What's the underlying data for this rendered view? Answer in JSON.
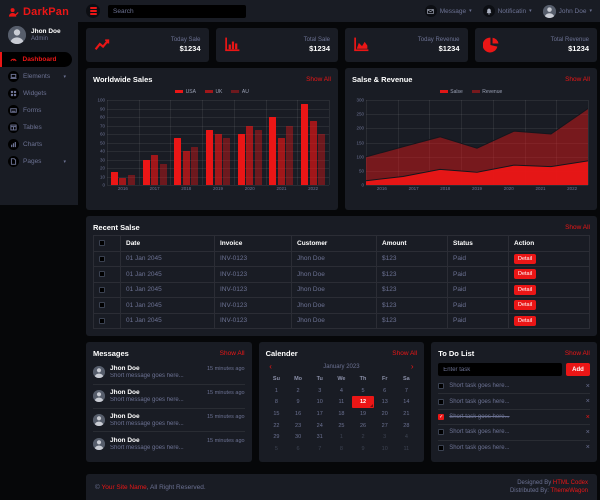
{
  "app": {
    "brand": "DarkPan"
  },
  "colors": {
    "primary": "#EB1616",
    "panel": "#191C24",
    "body": "#060709",
    "muted": "#6C7293"
  },
  "show_all": "Show All",
  "sidebar": {
    "user": {
      "name": "Jhon Doe",
      "role": "Admin"
    },
    "items": [
      {
        "label": "Dashboard",
        "icon": "dashboard-icon",
        "active": true,
        "chevron": false
      },
      {
        "label": "Elements",
        "icon": "laptop-icon",
        "active": false,
        "chevron": true
      },
      {
        "label": "Widgets",
        "icon": "grid-icon",
        "active": false,
        "chevron": false
      },
      {
        "label": "Forms",
        "icon": "keyboard-icon",
        "active": false,
        "chevron": false
      },
      {
        "label": "Tables",
        "icon": "table-icon",
        "active": false,
        "chevron": false
      },
      {
        "label": "Charts",
        "icon": "chart-icon",
        "active": false,
        "chevron": false
      },
      {
        "label": "Pages",
        "icon": "file-icon",
        "active": false,
        "chevron": true
      }
    ]
  },
  "topbar": {
    "search_placeholder": "Search",
    "message_label": "Message",
    "notification_label": "Notificatin",
    "user_label": "John Doe"
  },
  "stats": [
    {
      "label": "Today Sale",
      "value": "$1234",
      "icon": "line-chart-icon"
    },
    {
      "label": "Total Sale",
      "value": "$1234",
      "icon": "bar-chart-icon"
    },
    {
      "label": "Today Revenue",
      "value": "$1234",
      "icon": "area-chart-icon"
    },
    {
      "label": "Total Revenue",
      "value": "$1234",
      "icon": "pie-chart-icon"
    }
  ],
  "chart_data": [
    {
      "type": "bar",
      "title": "Worldwide Sales",
      "categories": [
        "2016",
        "2017",
        "2018",
        "2019",
        "2020",
        "2021",
        "2022"
      ],
      "series": [
        {
          "name": "USA",
          "color": "rgba(235,22,22,1)",
          "values": [
            15,
            30,
            55,
            65,
            60,
            80,
            95
          ]
        },
        {
          "name": "UK",
          "color": "rgba(235,22,22,0.65)",
          "values": [
            8,
            35,
            40,
            60,
            70,
            55,
            75
          ]
        },
        {
          "name": "AU",
          "color": "rgba(235,22,22,0.4)",
          "values": [
            12,
            25,
            45,
            55,
            65,
            70,
            60
          ]
        }
      ],
      "ylim": [
        0,
        100
      ],
      "ytick": 10,
      "grid": true,
      "legend_position": "top"
    },
    {
      "type": "area",
      "title": "Salse & Revenue",
      "categories": [
        "2016",
        "2017",
        "2018",
        "2019",
        "2020",
        "2021",
        "2022"
      ],
      "series": [
        {
          "name": "Salse",
          "color": "rgba(235,22,22,0.95)",
          "values": [
            15,
            30,
            55,
            45,
            70,
            65,
            85
          ]
        },
        {
          "name": "Revenue",
          "color": "rgba(235,22,22,0.45)",
          "values": [
            99,
            135,
            170,
            130,
            190,
            180,
            270
          ]
        }
      ],
      "ylim": [
        0,
        300
      ],
      "ytick": 50,
      "grid": true,
      "legend_position": "top"
    }
  ],
  "table": {
    "title": "Recent Salse",
    "columns": [
      "Date",
      "Invoice",
      "Customer",
      "Amount",
      "Status",
      "Action"
    ],
    "action_label": "Detail",
    "rows": [
      {
        "date": "01 Jan 2045",
        "invoice": "INV-0123",
        "customer": "Jhon Doe",
        "amount": "$123",
        "status": "Paid"
      },
      {
        "date": "01 Jan 2045",
        "invoice": "INV-0123",
        "customer": "Jhon Doe",
        "amount": "$123",
        "status": "Paid"
      },
      {
        "date": "01 Jan 2045",
        "invoice": "INV-0123",
        "customer": "Jhon Doe",
        "amount": "$123",
        "status": "Paid"
      },
      {
        "date": "01 Jan 2045",
        "invoice": "INV-0123",
        "customer": "Jhon Doe",
        "amount": "$123",
        "status": "Paid"
      },
      {
        "date": "01 Jan 2045",
        "invoice": "INV-0123",
        "customer": "Jhon Doe",
        "amount": "$123",
        "status": "Paid"
      }
    ]
  },
  "messages": {
    "title": "Messages",
    "items": [
      {
        "name": "Jhon Doe",
        "text": "Short message goes here...",
        "time": "15 minutes ago"
      },
      {
        "name": "Jhon Doe",
        "text": "Short message goes here...",
        "time": "15 minutes ago"
      },
      {
        "name": "Jhon Doe",
        "text": "Short message goes here...",
        "time": "15 minutes ago"
      },
      {
        "name": "Jhon Doe",
        "text": "Short message goes here...",
        "time": "15 minutes ago"
      }
    ]
  },
  "calendar": {
    "title": "Calender",
    "month": "January 2023",
    "prev_icon": "chevron-left-icon",
    "next_icon": "chevron-right-icon",
    "day_headers": [
      "Su",
      "Mo",
      "Tu",
      "We",
      "Th",
      "Fr",
      "Sa"
    ],
    "days": [
      {
        "label": "1"
      },
      {
        "label": "2"
      },
      {
        "label": "3"
      },
      {
        "label": "4"
      },
      {
        "label": "5"
      },
      {
        "label": "6"
      },
      {
        "label": "7"
      },
      {
        "label": "8"
      },
      {
        "label": "9"
      },
      {
        "label": "10"
      },
      {
        "label": "11"
      },
      {
        "label": "12",
        "selected": true
      },
      {
        "label": "13"
      },
      {
        "label": "14"
      },
      {
        "label": "15"
      },
      {
        "label": "16"
      },
      {
        "label": "17"
      },
      {
        "label": "18"
      },
      {
        "label": "19"
      },
      {
        "label": "20"
      },
      {
        "label": "21"
      },
      {
        "label": "22"
      },
      {
        "label": "23"
      },
      {
        "label": "24"
      },
      {
        "label": "25"
      },
      {
        "label": "26"
      },
      {
        "label": "27"
      },
      {
        "label": "28"
      },
      {
        "label": "29"
      },
      {
        "label": "30"
      },
      {
        "label": "31"
      },
      {
        "label": "1",
        "muted": true
      },
      {
        "label": "2",
        "muted": true
      },
      {
        "label": "3",
        "muted": true
      },
      {
        "label": "4",
        "muted": true
      },
      {
        "label": "5",
        "muted": true
      },
      {
        "label": "6",
        "muted": true
      },
      {
        "label": "7",
        "muted": true
      },
      {
        "label": "8",
        "muted": true
      },
      {
        "label": "9",
        "muted": true
      },
      {
        "label": "10",
        "muted": true
      },
      {
        "label": "11",
        "muted": true
      }
    ]
  },
  "todo": {
    "title": "To Do List",
    "input_placeholder": "Enter task",
    "add_label": "Add",
    "check_glyph": "✓",
    "close_glyph": "×",
    "items": [
      {
        "text": "Short task goes here...",
        "done": false
      },
      {
        "text": "Short task goes here...",
        "done": false
      },
      {
        "text": "Short task goes here...",
        "done": true
      },
      {
        "text": "Short task goes here...",
        "done": false
      },
      {
        "text": "Short task goes here...",
        "done": false
      }
    ]
  },
  "footer": {
    "copyright_prefix": "© ",
    "site_name": "Your Site Name",
    "copyright_suffix": ", All Right Reserved.",
    "designed_by": "Designed By ",
    "designer": "HTML Codex",
    "distributed_by": "Distributed By: ",
    "distributor": "ThemeWagon"
  }
}
